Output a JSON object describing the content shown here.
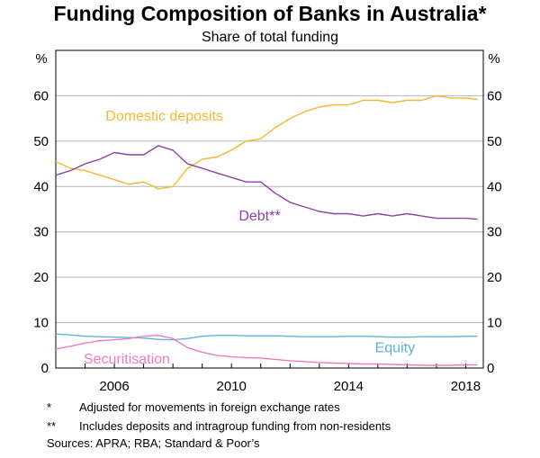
{
  "chart_data": {
    "type": "line",
    "title": "Funding Composition of Banks in Australia*",
    "subtitle": "Share of total funding",
    "ylabel_left": "%",
    "ylabel_right": "%",
    "ylim": [
      0,
      70
    ],
    "xlim": [
      2004,
      2018.6
    ],
    "yticks": [
      0,
      10,
      20,
      30,
      40,
      50,
      60
    ],
    "xticks": [
      2006,
      2010,
      2014,
      2018
    ],
    "grid": true,
    "legend": "inline labels",
    "series": [
      {
        "name": "Domestic deposits",
        "color": "#f5b731",
        "x": [
          2004,
          2004.5,
          2005,
          2005.5,
          2006,
          2006.5,
          2007,
          2007.5,
          2008,
          2008.5,
          2009,
          2009.5,
          2010,
          2010.5,
          2011,
          2011.5,
          2012,
          2012.5,
          2013,
          2013.5,
          2014,
          2014.5,
          2015,
          2015.5,
          2016,
          2016.5,
          2017,
          2017.5,
          2018,
          2018.4
        ],
        "values": [
          45.5,
          44,
          43.5,
          42.5,
          41.5,
          40.5,
          41,
          39.5,
          40,
          44,
          46,
          46.5,
          48,
          50,
          50.5,
          53,
          55,
          56.5,
          57.5,
          58,
          58,
          59,
          59,
          58.5,
          59,
          59,
          60,
          59.5,
          59.5,
          59.2
        ]
      },
      {
        "name": "Debt**",
        "color": "#8f3fa8",
        "x": [
          2004,
          2004.5,
          2005,
          2005.5,
          2006,
          2006.5,
          2007,
          2007.5,
          2008,
          2008.5,
          2009,
          2009.5,
          2010,
          2010.5,
          2011,
          2011.5,
          2012,
          2012.5,
          2013,
          2013.5,
          2014,
          2014.5,
          2015,
          2015.5,
          2016,
          2016.5,
          2017,
          2017.5,
          2018,
          2018.4
        ],
        "values": [
          42.5,
          43.5,
          45,
          46,
          47.5,
          47,
          47,
          49,
          48,
          45,
          44,
          43,
          42,
          41,
          41,
          38.5,
          36.5,
          35.5,
          34.5,
          34,
          34,
          33.5,
          34,
          33.5,
          34,
          33.5,
          33,
          33,
          33,
          32.8
        ]
      },
      {
        "name": "Equity",
        "color": "#5bb5d9",
        "x": [
          2004,
          2004.5,
          2005,
          2005.5,
          2006,
          2006.5,
          2007,
          2007.5,
          2008,
          2008.5,
          2009,
          2009.5,
          2010,
          2010.5,
          2011,
          2011.5,
          2012,
          2012.5,
          2013,
          2013.5,
          2014,
          2014.5,
          2015,
          2015.5,
          2016,
          2016.5,
          2017,
          2017.5,
          2018,
          2018.4
        ],
        "values": [
          7.5,
          7.3,
          7.0,
          6.9,
          6.8,
          6.7,
          6.6,
          6.3,
          6.2,
          6.5,
          7.0,
          7.2,
          7.2,
          7.1,
          7.1,
          7.1,
          7.0,
          6.9,
          6.9,
          6.9,
          7.0,
          7.0,
          6.9,
          6.8,
          6.8,
          6.9,
          6.9,
          6.9,
          7.0,
          7.0
        ]
      },
      {
        "name": "Securitisation",
        "color": "#f07ac0",
        "x": [
          2004,
          2004.5,
          2005,
          2005.5,
          2006,
          2006.5,
          2007,
          2007.5,
          2008,
          2008.5,
          2009,
          2009.5,
          2010,
          2010.5,
          2011,
          2011.5,
          2012,
          2012.5,
          2013,
          2013.5,
          2014,
          2014.5,
          2015,
          2015.5,
          2016,
          2016.5,
          2017,
          2017.5,
          2018,
          2018.4
        ],
        "values": [
          4.2,
          4.8,
          5.5,
          6.0,
          6.2,
          6.5,
          7.0,
          7.2,
          6.5,
          4.5,
          3.5,
          2.8,
          2.5,
          2.3,
          2.2,
          1.9,
          1.6,
          1.4,
          1.2,
          1.1,
          1.0,
          0.9,
          0.9,
          0.8,
          0.7,
          0.6,
          0.6,
          0.6,
          0.7,
          0.7
        ]
      }
    ]
  },
  "notes": [
    {
      "mark": "*",
      "text": "Adjusted for movements in foreign exchange rates"
    },
    {
      "mark": "**",
      "text": "Includes deposits and intragroup funding from non-residents"
    }
  ],
  "source": "Sources:   APRA; RBA; Standard & Poor’s"
}
